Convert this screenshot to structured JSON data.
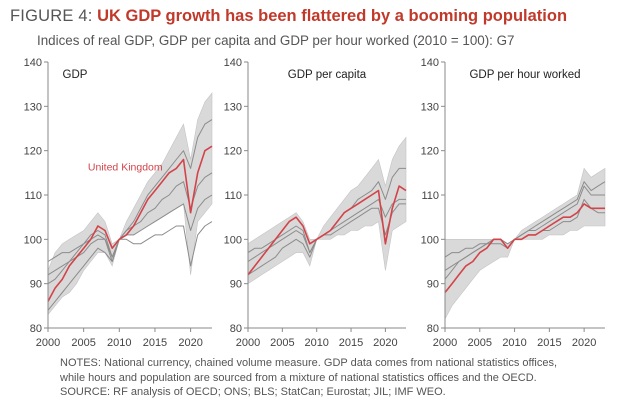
{
  "header": {
    "figure_label": "FIGURE 4:",
    "headline": " UK GDP growth has been flattered by a booming population",
    "subtitle": "Indices of real GDP, GDP per capita and GDP per hour worked (2010 = 100): G7"
  },
  "notes": [
    "NOTES: National currency, chained volume measure. GDP data comes from national statistics offices,",
    "while hours and population are sourced from a mixture of national statistics offices and the OECD.",
    "SOURCE: RF analysis of OECD; ONS; BLS; StatCan; Eurostat; JIL; IMF WEO."
  ],
  "colors": {
    "band": "#d9d9d9",
    "peer_line": "#8c8c8c",
    "uk_line": "#d2444a",
    "axis": "#8a8a8a",
    "text": "#444444"
  },
  "chart_data": [
    {
      "type": "area",
      "title": "GDP",
      "xlim": [
        2000,
        2023
      ],
      "ylim": [
        80,
        140
      ],
      "xticks": [
        2000,
        2005,
        2010,
        2015,
        2020
      ],
      "yticks": [
        80,
        90,
        100,
        110,
        120,
        130,
        140
      ],
      "annotation": "United Kingdom",
      "x": [
        2000,
        2001,
        2002,
        2003,
        2004,
        2005,
        2006,
        2007,
        2008,
        2009,
        2010,
        2011,
        2012,
        2013,
        2014,
        2015,
        2016,
        2017,
        2018,
        2019,
        2020,
        2021,
        2022,
        2023
      ],
      "band_upper": [
        93,
        97,
        99,
        100,
        101,
        102,
        104,
        106,
        104,
        99,
        100,
        104,
        107,
        110,
        113,
        115,
        117,
        120,
        123,
        126,
        118,
        127,
        131,
        133
      ],
      "band_lower": [
        83,
        85,
        87,
        88,
        90,
        93,
        95,
        97,
        97,
        94,
        100,
        101,
        101,
        102,
        103,
        104,
        105,
        106,
        107,
        108,
        92,
        104,
        106,
        108
      ],
      "series": [
        {
          "name": "United Kingdom",
          "values": [
            86,
            89,
            91,
            94,
            96,
            98,
            100,
            103,
            102,
            98,
            100,
            101,
            103,
            106,
            109,
            111,
            113,
            115,
            116,
            118,
            106,
            115,
            120,
            121
          ]
        },
        {
          "values": [
            90,
            91,
            93,
            95,
            97,
            99,
            101,
            102,
            101,
            96,
            100,
            102,
            104,
            107,
            110,
            112,
            114,
            116,
            118,
            120,
            116,
            123,
            126,
            127
          ]
        },
        {
          "values": [
            84,
            86,
            88,
            90,
            92,
            94,
            96,
            98,
            97,
            95,
            100,
            102,
            103,
            104,
            106,
            107,
            109,
            110,
            112,
            113,
            107,
            112,
            114,
            115
          ]
        },
        {
          "values": [
            92,
            93,
            94,
            95,
            96,
            97,
            99,
            100,
            100,
            96,
            100,
            101,
            101,
            102,
            103,
            104,
            105,
            106,
            107,
            108,
            102,
            107,
            109,
            110
          ]
        },
        {
          "values": [
            95,
            96,
            97,
            97,
            98,
            99,
            100,
            101,
            100,
            95,
            100,
            100,
            99,
            99,
            100,
            101,
            101,
            102,
            103,
            103,
            94,
            101,
            103,
            104
          ]
        }
      ]
    },
    {
      "type": "area",
      "title": "GDP per capita",
      "xlim": [
        2000,
        2023
      ],
      "ylim": [
        80,
        140
      ],
      "xticks": [
        2000,
        2005,
        2010,
        2015,
        2020
      ],
      "yticks": [
        80,
        90,
        100,
        110,
        120,
        130,
        140
      ],
      "x": [
        2000,
        2001,
        2002,
        2003,
        2004,
        2005,
        2006,
        2007,
        2008,
        2009,
        2010,
        2011,
        2012,
        2013,
        2014,
        2015,
        2016,
        2017,
        2018,
        2019,
        2020,
        2021,
        2022,
        2023
      ],
      "band_upper": [
        99,
        100,
        101,
        102,
        103,
        104,
        105,
        106,
        104,
        100,
        100,
        103,
        105,
        107,
        109,
        111,
        112,
        114,
        116,
        118,
        112,
        118,
        121,
        123
      ],
      "band_lower": [
        90,
        91,
        92,
        93,
        94,
        95,
        96,
        97,
        97,
        94,
        100,
        100,
        100,
        101,
        101,
        102,
        102,
        103,
        103,
        104,
        93,
        102,
        103,
        104
      ],
      "series": [
        {
          "name": "United Kingdom",
          "values": [
            92,
            94,
            96,
            98,
            100,
            102,
            104,
            105,
            103,
            99,
            100,
            101,
            102,
            104,
            106,
            107,
            108,
            109,
            110,
            111,
            99,
            107,
            112,
            111
          ]
        },
        {
          "values": [
            95,
            96,
            97,
            98,
            99,
            100,
            101,
            102,
            101,
            97,
            100,
            101,
            102,
            104,
            106,
            107,
            109,
            110,
            111,
            113,
            109,
            114,
            116,
            116
          ]
        },
        {
          "values": [
            92,
            93,
            94,
            95,
            96,
            98,
            99,
            100,
            99,
            96,
            100,
            101,
            102,
            103,
            104,
            105,
            106,
            107,
            108,
            109,
            105,
            108,
            109,
            109
          ]
        },
        {
          "values": [
            97,
            98,
            98,
            99,
            100,
            101,
            102,
            103,
            102,
            97,
            100,
            101,
            101,
            102,
            103,
            104,
            105,
            106,
            107,
            107,
            101,
            106,
            108,
            108
          ]
        }
      ]
    },
    {
      "type": "area",
      "title": "GDP per hour worked",
      "xlim": [
        2000,
        2023
      ],
      "ylim": [
        80,
        140
      ],
      "xticks": [
        2000,
        2005,
        2010,
        2015,
        2020
      ],
      "yticks": [
        80,
        90,
        100,
        110,
        120,
        130,
        140
      ],
      "x": [
        2000,
        2001,
        2002,
        2003,
        2004,
        2005,
        2006,
        2007,
        2008,
        2009,
        2010,
        2011,
        2012,
        2013,
        2014,
        2015,
        2016,
        2017,
        2018,
        2019,
        2020,
        2021,
        2022,
        2023
      ],
      "band_upper": [
        100,
        100,
        100,
        100,
        100,
        100,
        100,
        100,
        100,
        99,
        100,
        102,
        103,
        104,
        105,
        106,
        107,
        108,
        109,
        110,
        116,
        114,
        115,
        116
      ],
      "band_lower": [
        82,
        85,
        87,
        89,
        91,
        93,
        94,
        95,
        96,
        96,
        100,
        100,
        100,
        100,
        100,
        101,
        101,
        101,
        102,
        102,
        103,
        103,
        103,
        103
      ],
      "series": [
        {
          "name": "United Kingdom",
          "values": [
            88,
            90,
            92,
            94,
            95,
            97,
            98,
            100,
            100,
            98,
            100,
            100,
            101,
            101,
            102,
            103,
            104,
            105,
            105,
            106,
            108,
            107,
            107,
            107
          ]
        },
        {
          "values": [
            91,
            93,
            95,
            96,
            97,
            98,
            99,
            100,
            100,
            98,
            100,
            101,
            102,
            103,
            104,
            105,
            106,
            107,
            108,
            109,
            113,
            111,
            112,
            113
          ]
        },
        {
          "values": [
            93,
            94,
            95,
            96,
            97,
            98,
            99,
            99,
            99,
            98,
            100,
            101,
            102,
            102,
            103,
            104,
            105,
            106,
            107,
            108,
            112,
            110,
            110,
            110
          ]
        },
        {
          "values": [
            96,
            97,
            97,
            98,
            98,
            99,
            99,
            100,
            100,
            99,
            100,
            100,
            101,
            101,
            102,
            102,
            103,
            104,
            104,
            105,
            109,
            107,
            106,
            106
          ]
        }
      ]
    }
  ]
}
